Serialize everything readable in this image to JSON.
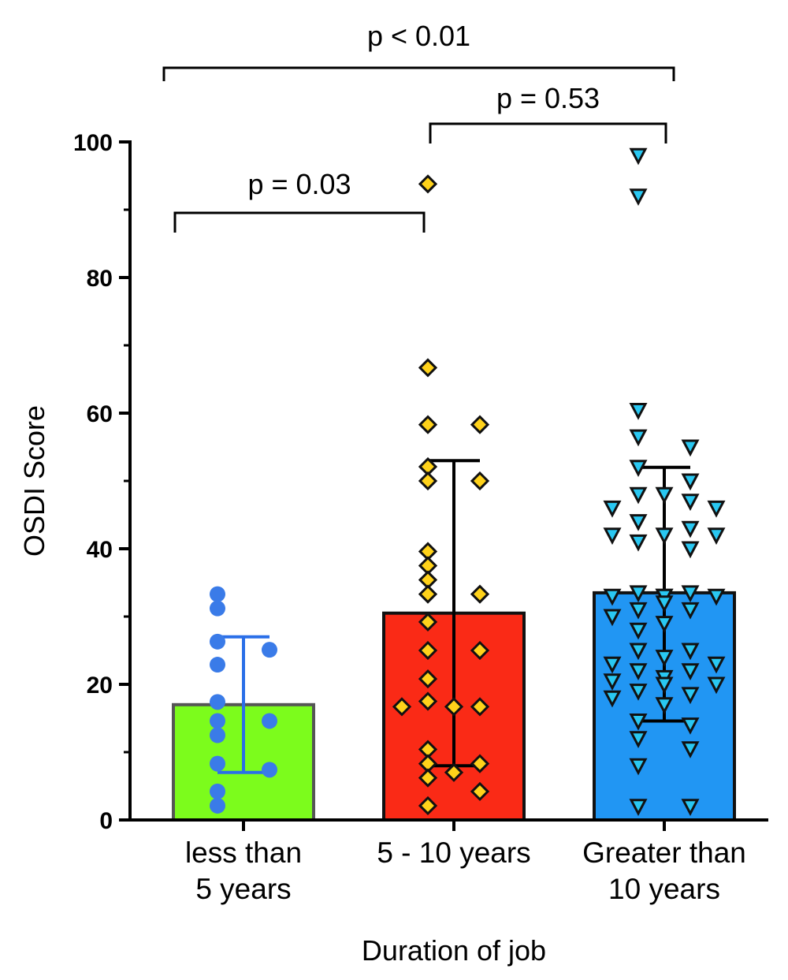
{
  "chart_data": {
    "type": "bar",
    "xlabel": "Duration of job",
    "ylabel": "OSDI Score",
    "ylim": [
      0,
      100
    ],
    "yticks": [
      "0",
      "20",
      "40",
      "60",
      "80",
      "100"
    ],
    "groups": [
      {
        "label_lines": [
          "less than",
          "5 years"
        ],
        "mean": 17,
        "sd_low": 7,
        "sd_high": 27,
        "marker": "circle",
        "fill": "#7cfc1c",
        "point_color": "#3a7be8",
        "errorbar_color": "#2a6fe8",
        "points": [
          33.3,
          31.2,
          26.3,
          25.1,
          22.9,
          17.4,
          14.6,
          14.6,
          12.5,
          8.3,
          7.4,
          4.2,
          2.1
        ]
      },
      {
        "label_lines": [
          "5 - 10 years"
        ],
        "mean": 30.5,
        "sd_low": 8,
        "sd_high": 53,
        "marker": "diamond",
        "fill": "#fa2a16",
        "point_color": "#ffd21a",
        "errorbar_color": "#000000",
        "points": [
          93.8,
          66.7,
          58.3,
          58.3,
          52.1,
          50.0,
          50.0,
          39.6,
          37.5,
          35.4,
          33.3,
          33.3,
          29.2,
          25.0,
          25.0,
          20.8,
          17.5,
          16.7,
          16.7,
          16.7,
          10.4,
          8.3,
          8.3,
          7.0,
          6.2,
          4.2,
          2.1
        ]
      },
      {
        "label_lines": [
          "Greater than",
          "10 years"
        ],
        "mean": 33.5,
        "sd_low": 14.6,
        "sd_high": 52,
        "marker": "triangle-down",
        "fill": "#2196f3",
        "point_color": "#29c8f2",
        "errorbar_color": "#000000",
        "points": [
          98.0,
          92.0,
          60.4,
          56.5,
          55.0,
          52.0,
          50.0,
          48.0,
          48.0,
          47.0,
          46.0,
          46.0,
          44.0,
          43.0,
          42.0,
          42.0,
          42.0,
          41.0,
          40.0,
          33.5,
          33.5,
          33.0,
          33.0,
          33.0,
          33.0,
          32.0,
          31.0,
          31.0,
          30.0,
          29.0,
          28.0,
          25.0,
          25.0,
          24.0,
          23.0,
          23.0,
          22.0,
          22.0,
          21.0,
          20.5,
          20.0,
          20.0,
          19.0,
          18.5,
          18.0,
          17.0,
          14.6,
          14.0,
          12.0,
          10.5,
          8.0,
          2.0,
          2.0
        ]
      }
    ],
    "comparisons": [
      {
        "from": 0,
        "to": 1,
        "label": "p = 0.03"
      },
      {
        "from": 1,
        "to": 2,
        "label": "p = 0.53"
      },
      {
        "from": 0,
        "to": 2,
        "label": "p < 0.01"
      }
    ]
  }
}
